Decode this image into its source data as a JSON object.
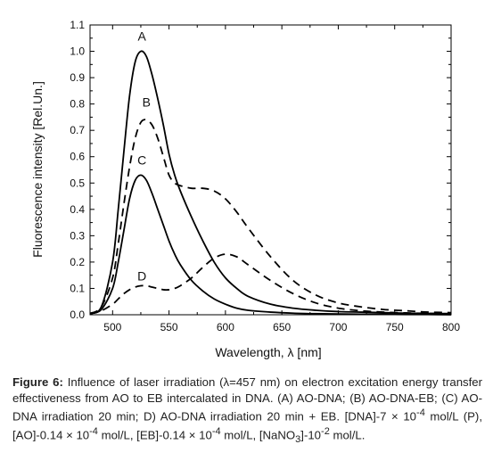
{
  "chart_data": {
    "type": "line",
    "xlabel": "Wavelength, λ [nm]",
    "ylabel": "Fluorescence intensity [Rel.Un.]",
    "xlim": [
      480,
      800
    ],
    "ylim": [
      0.0,
      1.1
    ],
    "x_ticks": [
      "500",
      "550",
      "600",
      "650",
      "700",
      "750",
      "800"
    ],
    "y_ticks": [
      "0.0",
      "0.1",
      "0.2",
      "0.3",
      "0.4",
      "0.5",
      "0.6",
      "0.7",
      "0.8",
      "0.9",
      "1.0",
      "1.1"
    ],
    "grid": false,
    "series": [
      {
        "name": "A",
        "style": "solid",
        "x": [
          480,
          490,
          500,
          505,
          510,
          515,
          520,
          525,
          530,
          535,
          540,
          545,
          550,
          555,
          560,
          570,
          580,
          590,
          600,
          610,
          620,
          640,
          660,
          680,
          700,
          720,
          740,
          760,
          780,
          800
        ],
        "y": [
          0.005,
          0.03,
          0.2,
          0.4,
          0.62,
          0.83,
          0.96,
          1.0,
          0.98,
          0.91,
          0.82,
          0.72,
          0.61,
          0.53,
          0.47,
          0.37,
          0.28,
          0.2,
          0.14,
          0.1,
          0.07,
          0.04,
          0.025,
          0.017,
          0.012,
          0.01,
          0.008,
          0.006,
          0.005,
          0.004
        ]
      },
      {
        "name": "B",
        "style": "dashed",
        "x": [
          480,
          490,
          500,
          505,
          510,
          515,
          520,
          525,
          530,
          535,
          540,
          545,
          550,
          555,
          560,
          570,
          580,
          590,
          600,
          610,
          620,
          640,
          660,
          680,
          700,
          720,
          740,
          760,
          780,
          800
        ],
        "y": [
          0.005,
          0.03,
          0.14,
          0.27,
          0.42,
          0.56,
          0.67,
          0.73,
          0.74,
          0.72,
          0.67,
          0.6,
          0.53,
          0.5,
          0.49,
          0.48,
          0.48,
          0.47,
          0.44,
          0.39,
          0.33,
          0.22,
          0.13,
          0.075,
          0.045,
          0.03,
          0.02,
          0.015,
          0.01,
          0.008
        ]
      },
      {
        "name": "C",
        "style": "solid",
        "x": [
          480,
          490,
          500,
          505,
          510,
          515,
          520,
          525,
          530,
          535,
          540,
          545,
          550,
          555,
          560,
          570,
          580,
          590,
          600,
          610,
          620,
          640,
          660,
          680,
          700,
          720,
          740,
          760,
          780,
          800
        ],
        "y": [
          0.005,
          0.02,
          0.1,
          0.2,
          0.32,
          0.44,
          0.51,
          0.53,
          0.51,
          0.46,
          0.4,
          0.34,
          0.28,
          0.23,
          0.19,
          0.13,
          0.09,
          0.06,
          0.04,
          0.025,
          0.017,
          0.01,
          0.006,
          0.004,
          0.003,
          0.002,
          0.002,
          0.001,
          0.001,
          0.0
        ]
      },
      {
        "name": "D",
        "style": "dashed",
        "x": [
          480,
          490,
          500,
          505,
          510,
          515,
          520,
          525,
          530,
          535,
          540,
          545,
          550,
          555,
          560,
          570,
          580,
          590,
          600,
          610,
          620,
          640,
          660,
          680,
          700,
          720,
          740,
          760,
          780,
          800
        ],
        "y": [
          0.003,
          0.015,
          0.04,
          0.06,
          0.08,
          0.095,
          0.105,
          0.11,
          0.11,
          0.105,
          0.1,
          0.095,
          0.095,
          0.1,
          0.11,
          0.14,
          0.18,
          0.215,
          0.23,
          0.22,
          0.19,
          0.13,
          0.08,
          0.045,
          0.025,
          0.015,
          0.01,
          0.007,
          0.005,
          0.004
        ]
      }
    ],
    "curve_labels": [
      {
        "text": "A",
        "x": 526,
        "y": 1.04
      },
      {
        "text": "B",
        "x": 530,
        "y": 0.79
      },
      {
        "text": "C",
        "x": 526,
        "y": 0.57
      },
      {
        "text": "D",
        "x": 526,
        "y": 0.13
      }
    ]
  },
  "caption": {
    "label": "Figure 6:",
    "text_1": " Influence of laser irradiation (λ=457 nm) on electron excitation energy transfer effectiveness from AO to EB intercalated in DNA. (A) AO-DNA; (B) AO-DNA-EB; (C) AO-DNA irradiation 20 min; D) AO-DNA irradiation 20 min + EB. [DNA]-7 × 10",
    "exp_1": "-4",
    "text_2": " mol/L (P), [AO]-0.14 × 10",
    "exp_2": "-4",
    "text_3": " mol/L, [EB]-0.14 × 10",
    "exp_3": "-4",
    "text_4": " mol/L, [NaNO",
    "sub_1": "3",
    "text_5": "]-10",
    "exp_4": "-2",
    "text_6": " mol/L."
  }
}
